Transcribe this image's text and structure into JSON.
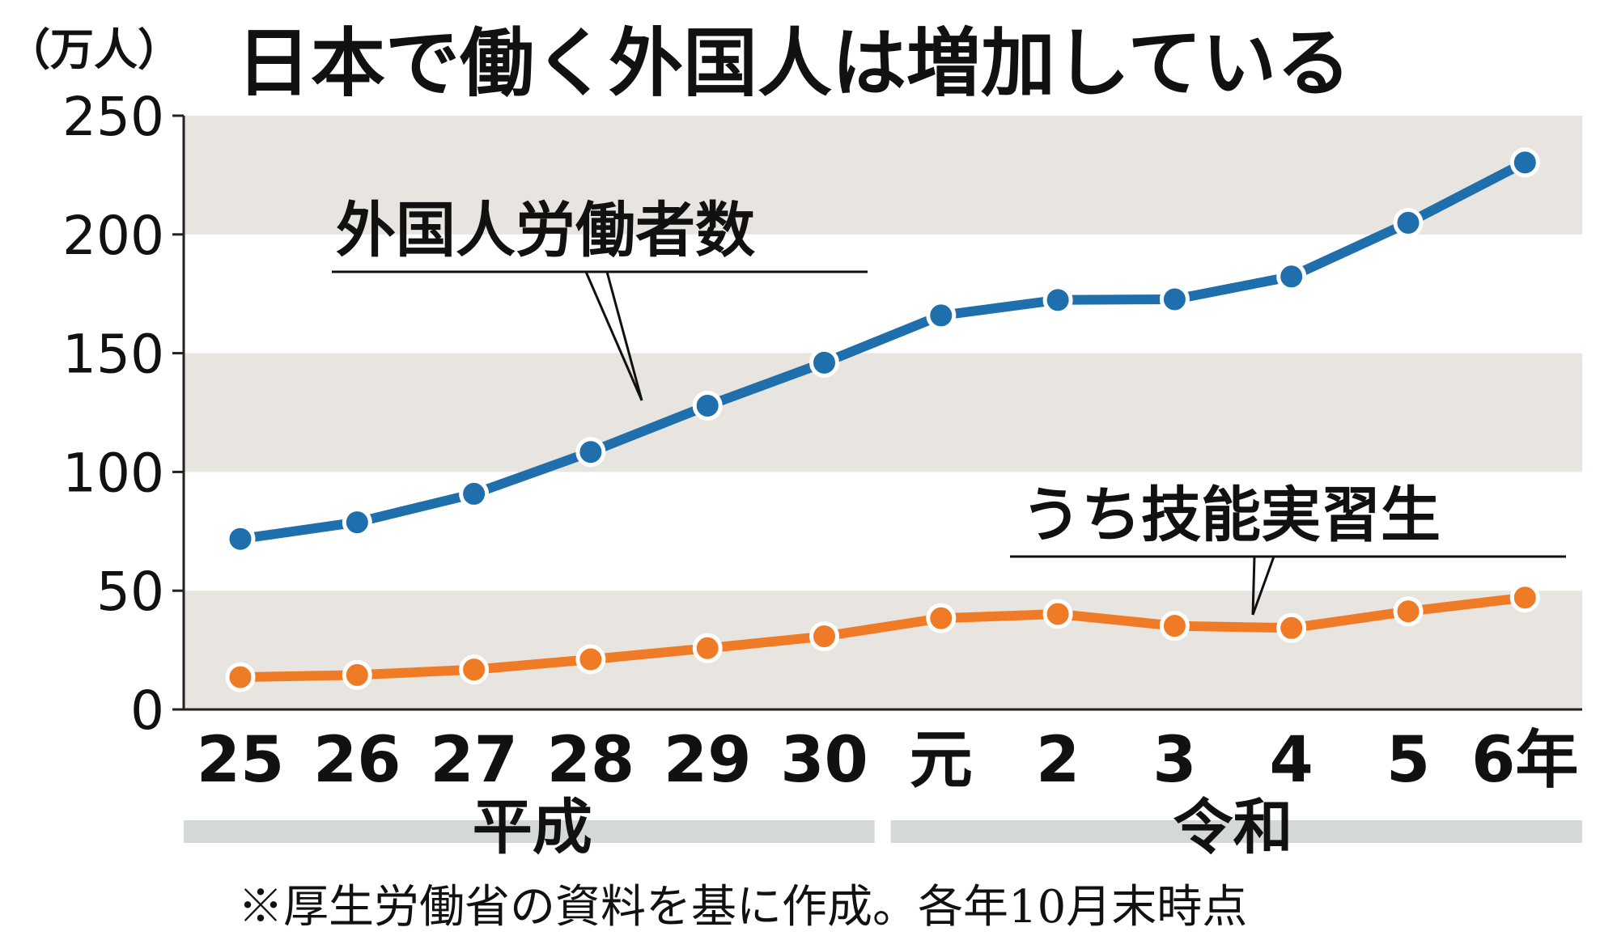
{
  "chart_data": {
    "type": "line",
    "title": "日本で働く外国人は増加している",
    "unit_label": "（万人）",
    "ylim": [
      0,
      250
    ],
    "yticks": [
      "0",
      "50",
      "100",
      "150",
      "200",
      "250"
    ],
    "grid": "alternating horizontal bands",
    "categories": [
      "25",
      "26",
      "27",
      "28",
      "29",
      "30",
      "元",
      "2",
      "3",
      "4",
      "5",
      "6年"
    ],
    "eras": [
      {
        "label": "平成",
        "from": "25",
        "to": "30"
      },
      {
        "label": "令和",
        "from": "元",
        "to": "6年"
      }
    ],
    "series": [
      {
        "name": "外国人労働者数",
        "color": "#1f6fad",
        "values": [
          71.8,
          78.8,
          90.8,
          108.4,
          127.9,
          146.0,
          165.9,
          172.4,
          172.7,
          182.3,
          204.9,
          230.3
        ]
      },
      {
        "name": "うち技能実習生",
        "color": "#f07b26",
        "values": [
          13.6,
          14.5,
          16.8,
          21.1,
          25.8,
          30.8,
          38.4,
          40.2,
          35.2,
          34.3,
          41.3,
          47.1
        ]
      }
    ]
  },
  "footnote": "※厚生労働省の資料を基に作成。各年10月末時点",
  "colors": {
    "band": "#e8e4e0",
    "axis": "#222222",
    "era_bar": "#d4d8d9",
    "text": "#111111"
  }
}
